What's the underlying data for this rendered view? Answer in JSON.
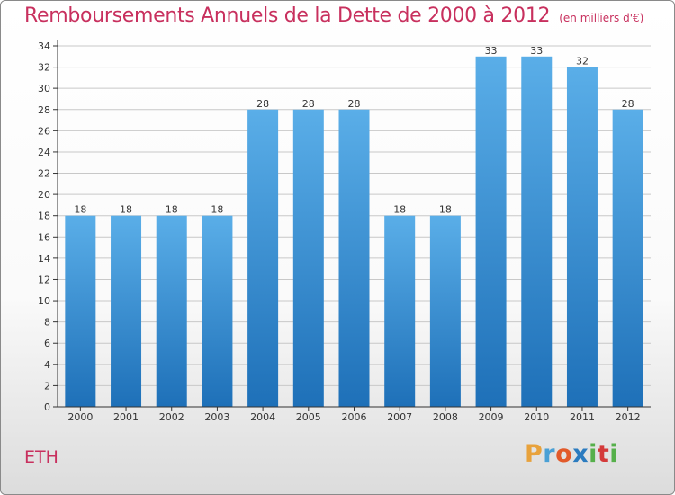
{
  "title": "Remboursements Annuels de la Dette de 2000 à 2012",
  "unit_note": "(en milliers d'€)",
  "city": "ETH",
  "logo": {
    "letters": [
      "P",
      "r",
      "o",
      "x",
      "i",
      "t",
      "i"
    ],
    "colors": [
      "#e8a23c",
      "#4aa0d5",
      "#e25a2a",
      "#2b7bbf",
      "#56b04b",
      "#d43a3a",
      "#56b04b"
    ]
  },
  "colors": {
    "title": "#c8305e",
    "bar_top": "#5aaee8",
    "bar_bottom": "#1e70b8",
    "grid": "#c8c8c8",
    "axis": "#333333"
  },
  "chart_data": {
    "type": "bar",
    "title": "Remboursements Annuels de la Dette de 2000 à 2012",
    "xlabel": "",
    "ylabel": "",
    "categories": [
      "2000",
      "2001",
      "2002",
      "2003",
      "2004",
      "2005",
      "2006",
      "2007",
      "2008",
      "2009",
      "2010",
      "2011",
      "2012"
    ],
    "values": [
      18,
      18,
      18,
      18,
      28,
      28,
      28,
      18,
      18,
      33,
      33,
      32,
      28
    ],
    "ylim": [
      0,
      34
    ],
    "yticks": [
      0,
      2,
      4,
      6,
      8,
      10,
      12,
      14,
      16,
      18,
      20,
      22,
      24,
      26,
      28,
      30,
      32,
      34
    ],
    "grid": true
  }
}
